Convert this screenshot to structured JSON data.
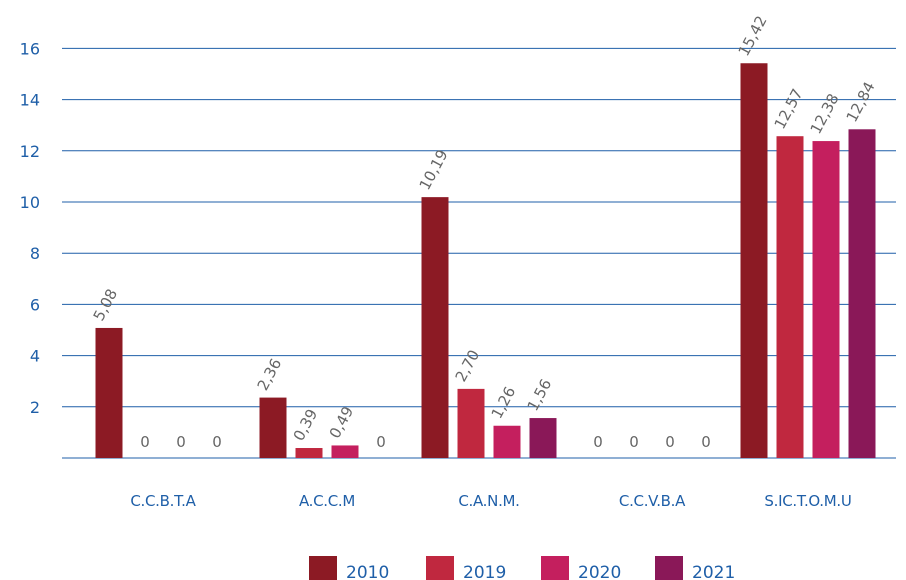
{
  "chart_data": {
    "type": "bar",
    "categories": [
      "C.C.B.T.A",
      "A.C.C.M",
      "C.A.N.M.",
      "C.C.V.B.A",
      "S.IC.T.O.M.U"
    ],
    "series": [
      {
        "name": "2010",
        "color": "#8c1a24",
        "values": [
          5.08,
          2.36,
          10.19,
          0,
          15.42
        ],
        "labels": [
          "5,08",
          "2,36",
          "10,19",
          "0",
          "15,42"
        ]
      },
      {
        "name": "2019",
        "color": "#c0283f",
        "values": [
          0,
          0.39,
          2.7,
          0,
          12.57
        ],
        "labels": [
          "0",
          "0,39",
          "2,70",
          "0",
          "12,57"
        ]
      },
      {
        "name": "2020",
        "color": "#c41f5e",
        "values": [
          0,
          0.49,
          1.26,
          0,
          12.38
        ],
        "labels": [
          "0",
          "0,49",
          "1,26",
          "0",
          "12,38"
        ]
      },
      {
        "name": "2021",
        "color": "#8a1858",
        "values": [
          0,
          0,
          1.56,
          0,
          12.84
        ],
        "labels": [
          "0",
          "0",
          "1,56",
          "0",
          "12,84"
        ]
      }
    ],
    "yticks": [
      2,
      4,
      6,
      8,
      10,
      12,
      14,
      16
    ],
    "ylim": [
      0,
      16.3
    ],
    "grid": true,
    "legend_position": "bottom"
  }
}
